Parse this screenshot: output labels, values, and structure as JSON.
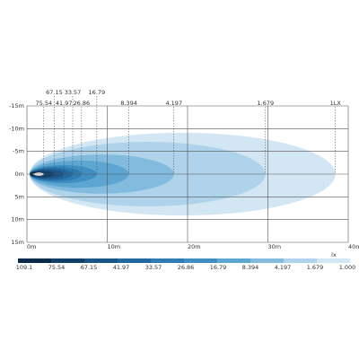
{
  "chart_data": {
    "type": "isolux",
    "xlim": [
      0,
      40
    ],
    "ylim": [
      -15,
      15
    ],
    "xticks": [
      {
        "value": 0,
        "label": "0m"
      },
      {
        "value": 10,
        "label": "10m"
      },
      {
        "value": 20,
        "label": "20m"
      },
      {
        "value": 30,
        "label": "30m"
      },
      {
        "value": 40,
        "label": "40m"
      }
    ],
    "yticks": [
      {
        "value": -15,
        "label": "-15m"
      },
      {
        "value": -10,
        "label": "-10m"
      },
      {
        "value": -5,
        "label": "-5m"
      },
      {
        "value": 0,
        "label": "0m"
      },
      {
        "value": 5,
        "label": "5m"
      },
      {
        "value": 10,
        "label": "10m"
      },
      {
        "value": 15,
        "label": "15m"
      }
    ],
    "grid": true,
    "contours": [
      {
        "lux": {
          "value": 1,
          "label": "1LX"
        },
        "reach": 38.4,
        "half_width": 9.1,
        "color": "#d3e6f4"
      },
      {
        "lux": 1.679,
        "reach": 29.7,
        "half_width": 7.1,
        "color": "#aed3ea"
      },
      {
        "lux": 4.197,
        "reach": 18.3,
        "half_width": 4.3,
        "color": "#82bbde"
      },
      {
        "lux": 8.394,
        "reach": 12.7,
        "half_width": 3.0,
        "color": "#5ea6d2"
      },
      {
        "lux": 16.79,
        "reach": 8.7,
        "half_width": 2.0,
        "color": "#3f8fc3"
      },
      {
        "lux": 26.86,
        "reach": 6.8,
        "half_width": 1.6,
        "color": "#2d7cb2"
      },
      {
        "lux": 33.57,
        "reach": 5.7,
        "half_width": 1.3,
        "color": "#2268a0"
      },
      {
        "lux": 41.97,
        "reach": 4.6,
        "half_width": 1.0,
        "color": "#1a5586"
      },
      {
        "lux": 67.15,
        "reach": 3.4,
        "half_width": 0.7,
        "color": "#123f69"
      },
      {
        "lux": 75.54,
        "reach": 2.1,
        "half_width": 0.5,
        "color": "#0b2a4a"
      }
    ],
    "colorbar": {
      "unit": "lx",
      "ticks": [
        109.1,
        75.54,
        67.15,
        41.97,
        33.57,
        26.86,
        16.79,
        8.394,
        4.197,
        1.679,
        {
          "value": 1,
          "label": "1.000"
        }
      ],
      "colors": [
        "#0b2a4a",
        "#123f69",
        "#1a5586",
        "#2268a0",
        "#2d7cb2",
        "#3f8fc3",
        "#5ea6d2",
        "#82bbde",
        "#aed3ea",
        "#d3e6f4"
      ]
    }
  }
}
